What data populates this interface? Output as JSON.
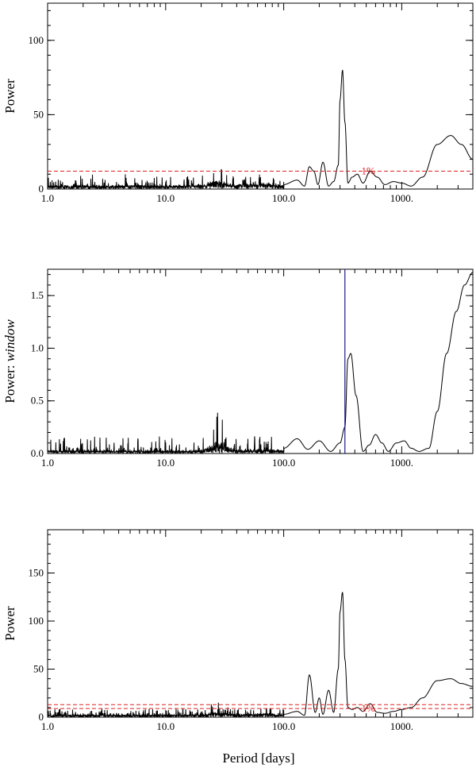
{
  "xlabel": "Period [days]",
  "colors": {
    "line": "#000000",
    "threshold": "#dd2222",
    "marker": "#1a1a8c",
    "background": "#ffffff"
  },
  "chart_data": [
    {
      "type": "line",
      "xlabel": "",
      "ylabel": "Power",
      "xscale": "log",
      "xlim": [
        1.0,
        4000
      ],
      "ylim": [
        0,
        125
      ],
      "xticks": [
        "1.0",
        "10.0",
        "100.0",
        "1000."
      ],
      "yticks": [
        "0",
        "50",
        "100"
      ],
      "grid": false,
      "series": [
        {
          "x": [
            1.0,
            2.0,
            5.0,
            10.0,
            20.0,
            26.0,
            40.0,
            70.0,
            100.0,
            130.0,
            150.0,
            165.0,
            180.0,
            195.0,
            215.0,
            240.0,
            265.0,
            290.0,
            300.0,
            315.0,
            330.0,
            350.0,
            380.0,
            420.0,
            470.0,
            540.0,
            620.0,
            720.0,
            850.0,
            1000.0,
            1200.0,
            1500.0,
            2000.0,
            2600.0,
            3200.0,
            4000.0
          ],
          "y": [
            3,
            3,
            3,
            3,
            4,
            14,
            5,
            9,
            3,
            6,
            2,
            15,
            12,
            3,
            18,
            2,
            5,
            16,
            60,
            80,
            45,
            4,
            8,
            10,
            4,
            12,
            8,
            3,
            5,
            4,
            2,
            8,
            30,
            36,
            30,
            20
          ]
        }
      ],
      "noise": {
        "xmax": 100.0,
        "base": 2.0,
        "amp": 7.0
      },
      "hlines": [
        {
          "y": 12,
          "label": "1%"
        }
      ]
    },
    {
      "type": "line",
      "xlabel": "",
      "ylabel": "Power: window",
      "xscale": "log",
      "xlim": [
        1.0,
        4000
      ],
      "ylim": [
        0,
        1.75
      ],
      "xticks": [
        "1.0",
        "10.0",
        "100.0",
        "1000."
      ],
      "yticks": [
        "0.0",
        "0.5",
        "1.0",
        "1.5"
      ],
      "grid": false,
      "series": [
        {
          "x": [
            1.0,
            5.0,
            10.0,
            20.0,
            28.0,
            40.0,
            70.0,
            100.0,
            130.0,
            160.0,
            200.0,
            250.0,
            300.0,
            330.0,
            350.0,
            370.0,
            410.0,
            470.0,
            530.0,
            600.0,
            680.0,
            770.0,
            900.0,
            1050.0,
            1200.0,
            1400.0,
            1700.0,
            2000.0,
            2400.0,
            2900.0,
            3400.0,
            4000.0
          ],
          "y": [
            0.05,
            0.04,
            0.04,
            0.06,
            0.35,
            0.06,
            0.08,
            0.05,
            0.14,
            0.04,
            0.12,
            0.02,
            0.1,
            0.25,
            0.9,
            0.95,
            0.55,
            0.02,
            0.08,
            0.18,
            0.1,
            0.02,
            0.1,
            0.12,
            0.05,
            0.02,
            0.05,
            0.4,
            0.95,
            1.35,
            1.6,
            1.72
          ]
        }
      ],
      "noise": {
        "xmax": 100.0,
        "base": 0.02,
        "amp": 0.15
      },
      "vlines": [
        {
          "x": 330
        }
      ]
    },
    {
      "type": "line",
      "xlabel": "",
      "ylabel": "Power",
      "xscale": "log",
      "xlim": [
        1.0,
        4000
      ],
      "ylim": [
        0,
        195
      ],
      "xticks": [
        "1.0",
        "10.0",
        "100.0",
        "1000."
      ],
      "yticks": [
        "0",
        "50",
        "100",
        "150"
      ],
      "grid": false,
      "series": [
        {
          "x": [
            1.0,
            2.0,
            5.0,
            10.0,
            20.0,
            26.0,
            40.0,
            70.0,
            100.0,
            130.0,
            150.0,
            165.0,
            185.0,
            200.0,
            215.0,
            240.0,
            265.0,
            290.0,
            300.0,
            315.0,
            330.0,
            350.0,
            380.0,
            420.0,
            470.0,
            540.0,
            620.0,
            720.0,
            850.0,
            1000.0,
            1200.0,
            1500.0,
            2000.0,
            2600.0,
            3200.0,
            4000.0
          ],
          "y": [
            3,
            3,
            3,
            3,
            4,
            14,
            5,
            8,
            3,
            6,
            2,
            44,
            5,
            20,
            3,
            28,
            5,
            50,
            110,
            130,
            60,
            10,
            8,
            10,
            6,
            14,
            5,
            4,
            6,
            8,
            10,
            20,
            38,
            40,
            35,
            32
          ]
        }
      ],
      "noise": {
        "xmax": 100.0,
        "base": 2.0,
        "amp": 7.0
      },
      "hlines": [
        {
          "y": 9,
          "label": "1%"
        },
        {
          "y": 13,
          "label": ""
        }
      ]
    }
  ]
}
